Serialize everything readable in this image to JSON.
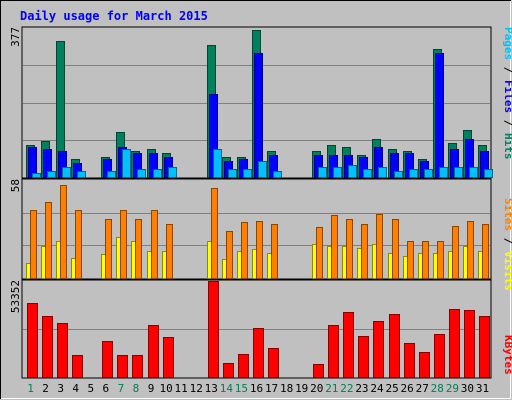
{
  "chart_data": [
    {
      "type": "bar",
      "title": "Daily usage for March 2015",
      "categories": [
        "1",
        "2",
        "3",
        "4",
        "5",
        "6",
        "7",
        "8",
        "9",
        "10",
        "11",
        "12",
        "13",
        "14",
        "15",
        "16",
        "17",
        "18",
        "19",
        "20",
        "21",
        "22",
        "23",
        "24",
        "25",
        "26",
        "27",
        "28",
        "29",
        "30",
        "31"
      ],
      "weekend_days": [
        "1",
        "7",
        "8",
        "14",
        "15",
        "21",
        "22",
        "28",
        "29"
      ],
      "ylim": [
        0,
        377
      ],
      "max_label": "377",
      "legend": [
        "Pages",
        "Files",
        "Hits"
      ],
      "series": [
        {
          "name": "Hits",
          "color": "#00805c",
          "values": [
            80,
            90,
            345,
            45,
            0,
            50,
            115,
            65,
            70,
            60,
            0,
            0,
            335,
            50,
            50,
            372,
            65,
            0,
            0,
            65,
            80,
            75,
            55,
            95,
            70,
            65,
            45,
            325,
            85,
            120,
            80
          ]
        },
        {
          "name": "Files",
          "color": "#0000ff",
          "values": [
            75,
            70,
            65,
            35,
            0,
            45,
            75,
            60,
            60,
            50,
            0,
            0,
            210,
            40,
            45,
            315,
            55,
            0,
            0,
            55,
            55,
            55,
            50,
            75,
            60,
            60,
            40,
            315,
            70,
            95,
            65
          ]
        },
        {
          "name": "Pages",
          "color": "#00c0ff",
          "values": [
            10,
            15,
            25,
            15,
            0,
            15,
            70,
            20,
            20,
            25,
            0,
            0,
            70,
            20,
            20,
            40,
            15,
            0,
            0,
            25,
            25,
            30,
            20,
            25,
            15,
            20,
            20,
            25,
            25,
            25,
            20
          ]
        }
      ]
    },
    {
      "type": "bar",
      "ylim": [
        0,
        58
      ],
      "max_label": "58",
      "legend": [
        "Sites",
        "Visits"
      ],
      "series": [
        {
          "name": "Visits",
          "color": "#ffff00",
          "values": [
            9,
            19,
            22,
            12,
            0,
            14,
            24,
            22,
            16,
            16,
            0,
            0,
            22,
            11,
            16,
            17,
            15,
            0,
            0,
            20,
            19,
            19,
            18,
            20,
            15,
            13,
            15,
            15,
            16,
            19,
            16
          ]
        },
        {
          "name": "Sites",
          "color": "#ff8000",
          "values": [
            40,
            45,
            55,
            40,
            0,
            35,
            40,
            35,
            40,
            32,
            0,
            0,
            53,
            28,
            33,
            34,
            32,
            0,
            0,
            30,
            37,
            35,
            32,
            38,
            35,
            22,
            22,
            22,
            31,
            34,
            32
          ]
        }
      ]
    },
    {
      "type": "bar",
      "ylim": [
        0,
        53352
      ],
      "max_label": "53352",
      "legend": [
        "KBytes"
      ],
      "series": [
        {
          "name": "KBytes",
          "color": "#ff0000",
          "values": [
            41000,
            34000,
            30000,
            12000,
            0,
            20000,
            12000,
            12000,
            29000,
            22000,
            0,
            0,
            53352,
            8000,
            13000,
            27000,
            16000,
            0,
            0,
            7000,
            29000,
            36000,
            23000,
            31000,
            35000,
            19000,
            14000,
            24000,
            38000,
            37000,
            34000
          ]
        }
      ]
    }
  ]
}
